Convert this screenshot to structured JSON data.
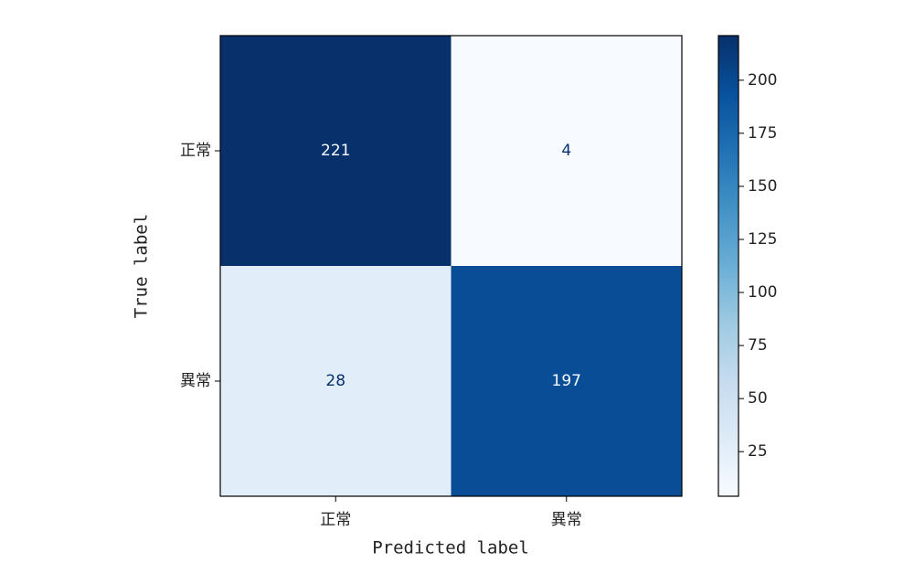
{
  "chart_data": {
    "type": "heatmap",
    "x_label": "Predicted label",
    "y_label": "True label",
    "x_categories": [
      "正常",
      "異常"
    ],
    "y_categories": [
      "正常",
      "異常"
    ],
    "values": [
      [
        221,
        4
      ],
      [
        28,
        197
      ]
    ],
    "colormap": [
      "#f7fbff",
      "#deebf7",
      "#c6dbef",
      "#9ecae1",
      "#6baed6",
      "#4292c6",
      "#2171b5",
      "#08519c",
      "#08306b"
    ],
    "clim": [
      4,
      221
    ],
    "cticks": [
      25,
      50,
      75,
      100,
      125,
      150,
      175,
      200
    ]
  }
}
